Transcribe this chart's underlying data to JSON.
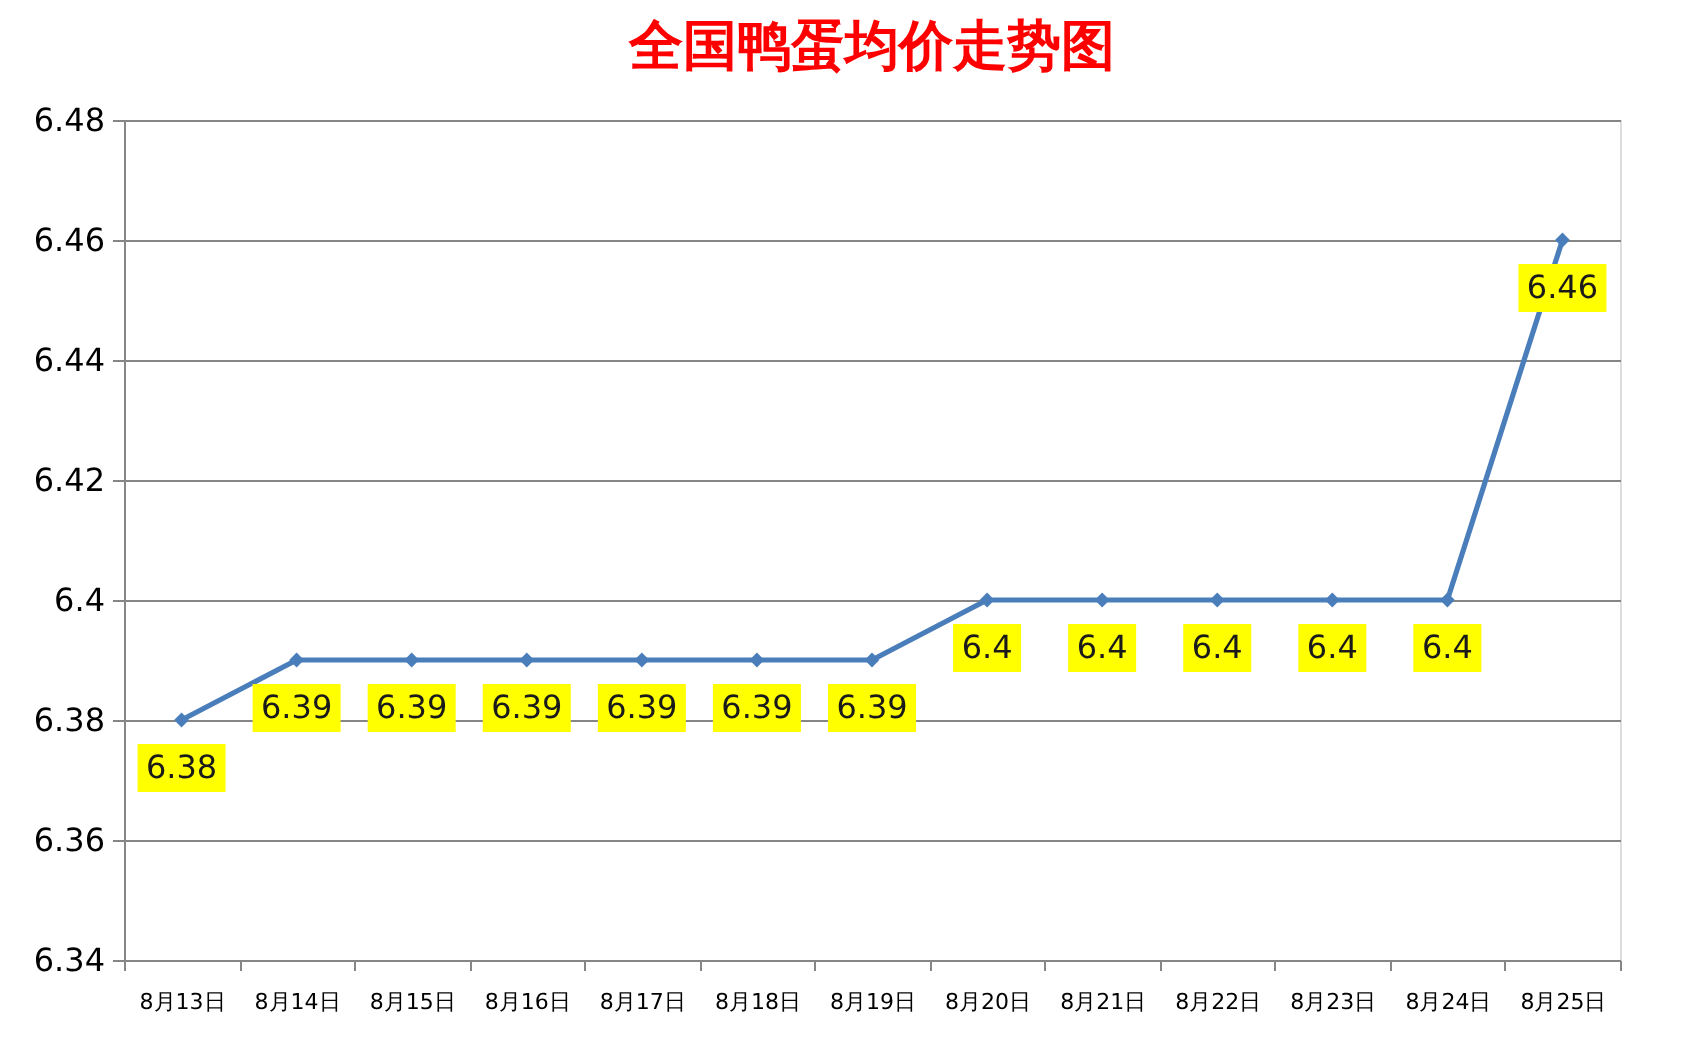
{
  "chart_data": {
    "type": "line",
    "title": "全国鸭蛋均价走势图",
    "categories": [
      "8月13日",
      "8月14日",
      "8月15日",
      "8月16日",
      "8月17日",
      "8月18日",
      "8月19日",
      "8月20日",
      "8月21日",
      "8月22日",
      "8月23日",
      "8月24日",
      "8月25日"
    ],
    "series": [
      {
        "color": "#4a7ebb",
        "values": [
          6.38,
          6.39,
          6.39,
          6.39,
          6.39,
          6.39,
          6.39,
          6.4,
          6.4,
          6.4,
          6.4,
          6.4,
          6.46
        ]
      }
    ],
    "ylim": [
      6.34,
      6.48
    ],
    "yticks": [
      6.34,
      6.36,
      6.38,
      6.4,
      6.42,
      6.44,
      6.46,
      6.48
    ],
    "grid": "y",
    "marker": "diamond",
    "line_style": "solid",
    "data_labels": true
  }
}
